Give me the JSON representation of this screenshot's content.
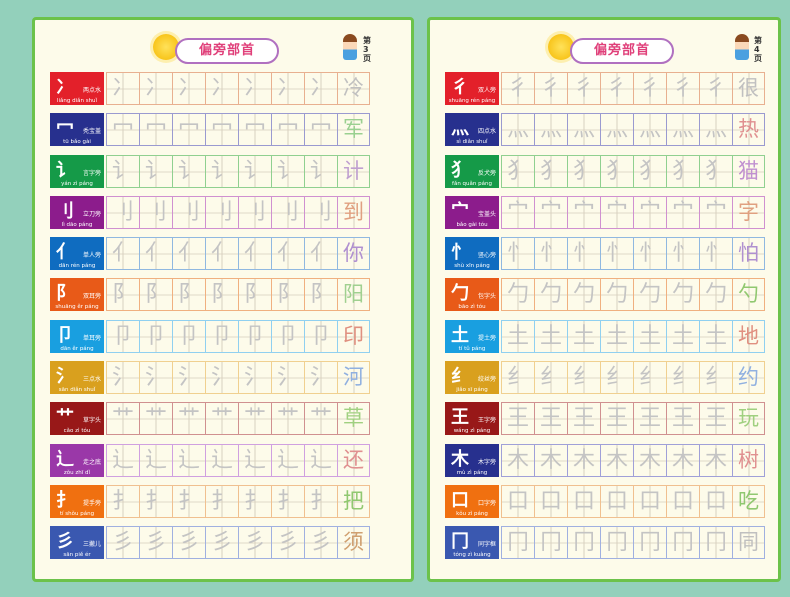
{
  "pages": [
    {
      "title": "偏旁部首",
      "page_label": "第3页",
      "rows": [
        {
          "radical": "冫",
          "name": "两点水",
          "pinyin": "liǎng diǎn shuǐ",
          "char": "冷",
          "color": "#e3202a",
          "cell": "#e8b090",
          "fin": "#c0c0c0"
        },
        {
          "radical": "冖",
          "name": "秃宝盖",
          "pinyin": "tū bǎo gài",
          "char": "军",
          "color": "#27308e",
          "cell": "#9a9ad0",
          "fin": "#9ad090"
        },
        {
          "radical": "讠",
          "name": "言字旁",
          "pinyin": "yán zì páng",
          "char": "计",
          "color": "#159a48",
          "cell": "#90d090",
          "fin": "#c0a0d0"
        },
        {
          "radical": "刂",
          "name": "立刀旁",
          "pinyin": "lì dāo páng",
          "char": "到",
          "color": "#8c1c8c",
          "cell": "#d090d0",
          "fin": "#e0a080"
        },
        {
          "radical": "亻",
          "name": "单人旁",
          "pinyin": "dān rén páng",
          "char": "你",
          "color": "#0f6cc0",
          "cell": "#90b8e0",
          "fin": "#b090d0"
        },
        {
          "radical": "阝",
          "name": "双耳旁",
          "pinyin": "shuāng ěr páng",
          "char": "阳",
          "color": "#e85a18",
          "cell": "#f0b080",
          "fin": "#a0d090"
        },
        {
          "radical": "卩",
          "name": "单耳旁",
          "pinyin": "dān ěr páng",
          "char": "印",
          "color": "#199fe0",
          "cell": "#90d0f0",
          "fin": "#e09080"
        },
        {
          "radical": "氵",
          "name": "三点水",
          "pinyin": "sān diǎn shuǐ",
          "char": "河",
          "color": "#d9a01e",
          "cell": "#f0d090",
          "fin": "#90b0e0"
        },
        {
          "radical": "艹",
          "name": "草字头",
          "pinyin": "cǎo zì tóu",
          "char": "草",
          "color": "#981818",
          "cell": "#d09090",
          "fin": "#a0d080"
        },
        {
          "radical": "辶",
          "name": "走之底",
          "pinyin": "zǒu zhī dǐ",
          "char": "还",
          "color": "#9a38a8",
          "cell": "#d0a0e0",
          "fin": "#e09090"
        },
        {
          "radical": "扌",
          "name": "提手旁",
          "pinyin": "tí shǒu páng",
          "char": "把",
          "color": "#f07010",
          "cell": "#f0c090",
          "fin": "#90c870"
        },
        {
          "radical": "彡",
          "name": "三撇儿",
          "pinyin": "sān piě ér",
          "char": "须",
          "color": "#3a58b0",
          "cell": "#a0b0e0",
          "fin": "#d0a070"
        }
      ]
    },
    {
      "title": "偏旁部首",
      "page_label": "第4页",
      "rows": [
        {
          "radical": "彳",
          "name": "双人旁",
          "pinyin": "shuāng rén páng",
          "char": "很",
          "color": "#e3202a",
          "cell": "#e8b090",
          "fin": "#c0c0c0"
        },
        {
          "radical": "灬",
          "name": "四点水",
          "pinyin": "sì diǎn shuǐ",
          "char": "热",
          "color": "#27308e",
          "cell": "#9a9ad0",
          "fin": "#e09090"
        },
        {
          "radical": "犭",
          "name": "反犬旁",
          "pinyin": "fǎn quǎn páng",
          "char": "猫",
          "color": "#159a48",
          "cell": "#90d090",
          "fin": "#c090d0"
        },
        {
          "radical": "宀",
          "name": "宝盖头",
          "pinyin": "bǎo gài tóu",
          "char": "字",
          "color": "#8c1c8c",
          "cell": "#d090d0",
          "fin": "#e0a080"
        },
        {
          "radical": "忄",
          "name": "竖心旁",
          "pinyin": "shù xīn páng",
          "char": "怕",
          "color": "#0f6cc0",
          "cell": "#90b8e0",
          "fin": "#b090d0"
        },
        {
          "radical": "勹",
          "name": "包字头",
          "pinyin": "bāo zì tóu",
          "char": "勺",
          "color": "#e85a18",
          "cell": "#f0b080",
          "fin": "#90c870"
        },
        {
          "radical": "土",
          "name": "提土旁",
          "pinyin": "tí tǔ páng",
          "char": "地",
          "color": "#199fe0",
          "cell": "#90d0f0",
          "fin": "#e09080"
        },
        {
          "radical": "纟",
          "name": "绞丝旁",
          "pinyin": "jiǎo sī páng",
          "char": "约",
          "color": "#d9a01e",
          "cell": "#f0d090",
          "fin": "#90b0e0"
        },
        {
          "radical": "王",
          "name": "王字旁",
          "pinyin": "wáng zì páng",
          "char": "玩",
          "color": "#981818",
          "cell": "#d09090",
          "fin": "#a0d080"
        },
        {
          "radical": "木",
          "name": "木字旁",
          "pinyin": "mù zì páng",
          "char": "树",
          "color": "#27308e",
          "cell": "#a0a0d8",
          "fin": "#e09090"
        },
        {
          "radical": "口",
          "name": "口字旁",
          "pinyin": "kǒu zì páng",
          "char": "吃",
          "color": "#f07010",
          "cell": "#f0c090",
          "fin": "#90c870"
        },
        {
          "radical": "冂",
          "name": "同字框",
          "pinyin": "tóng zì kuàng",
          "char": "同",
          "color": "#3a58b0",
          "cell": "#a0b0e0",
          "fin": "#c0c0c0"
        }
      ]
    }
  ],
  "colors": {
    "background": "#93d0bb",
    "page_border": "#6cc24a",
    "page_bg": "#fdfbea"
  }
}
